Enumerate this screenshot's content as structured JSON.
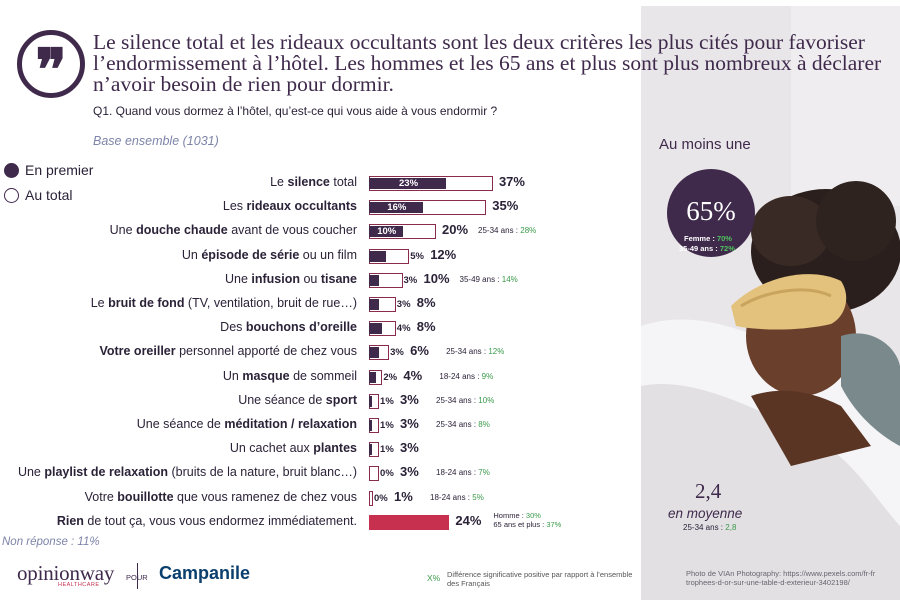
{
  "headline": "Le silence total et les rideaux occultants sont les deux critères les plus cités pour favoriser l’endormissement à l’hôtel. Les hommes et les 65 ans et plus sont plus nombreux à déclarer n’avoir besoin de rien pour dormir.",
  "question": "Q1. Quand vous dormez à l’hôtel, qu’est-ce qui vous aide à vous endormir ?",
  "base": "Base ensemble (1031)",
  "legend": {
    "first": "En premier",
    "total": "Au total"
  },
  "quote_icon": "quote-icon",
  "colors": {
    "primary": "#3f2a4c",
    "highlight": "#c8304f",
    "significant": "#3a9a4a"
  },
  "chart_data": {
    "type": "bar",
    "orientation": "horizontal",
    "series": [
      {
        "name": "En premier",
        "values": [
          23,
          16,
          10,
          5,
          3,
          3,
          4,
          3,
          2,
          1,
          1,
          1,
          0,
          0,
          null
        ]
      },
      {
        "name": "Au total",
        "values": [
          37,
          35,
          20,
          12,
          10,
          8,
          8,
          6,
          4,
          3,
          3,
          3,
          3,
          1,
          24
        ]
      }
    ],
    "categories": [
      {
        "pre": "Le ",
        "bold": "silence",
        "post": " total"
      },
      {
        "pre": "Les ",
        "bold": "rideaux occultants",
        "post": ""
      },
      {
        "pre": "Une ",
        "bold": "douche chaude",
        "post": " avant de vous coucher"
      },
      {
        "pre": "Un ",
        "bold": "épisode de série",
        "post": " ou un film"
      },
      {
        "pre": "Une ",
        "bold": "infusion",
        "post": " ou ",
        "bold2": "tisane"
      },
      {
        "pre": "Le ",
        "bold": "bruit de fond",
        "post": " (TV, ventilation, bruit de rue…)"
      },
      {
        "pre": "Des ",
        "bold": "bouchons d’oreille",
        "post": ""
      },
      {
        "pre": "",
        "bold": "Votre oreiller",
        "post": " personnel apporté de chez vous"
      },
      {
        "pre": "Un ",
        "bold": "masque",
        "post": " de sommeil"
      },
      {
        "pre": "Une séance de ",
        "bold": "sport",
        "post": ""
      },
      {
        "pre": "Une séance de ",
        "bold": "méditation / relaxation",
        "post": ""
      },
      {
        "pre": "Un cachet aux ",
        "bold": "plantes",
        "post": ""
      },
      {
        "pre": "Une ",
        "bold": "playlist de relaxation",
        "post": " (bruits de la nature, bruit blanc…)"
      },
      {
        "pre": "Votre ",
        "bold": "bouillotte",
        "post": " que vous ramenez de chez vous"
      },
      {
        "pre": "",
        "bold": "Rien",
        "post": " de tout ça, vous vous endormez immédiatement."
      }
    ],
    "significance": [
      null,
      null,
      {
        "group": "25-34 ans :",
        "value": "28%"
      },
      null,
      {
        "group": "35-49 ans :",
        "value": "14%"
      },
      null,
      null,
      {
        "group": "25-34 ans :",
        "value": "12%"
      },
      {
        "group": "18-24 ans :",
        "value": "9%"
      },
      {
        "group": "25-34 ans :",
        "value": "10%"
      },
      {
        "group": "25-34 ans :",
        "value": "8%"
      },
      null,
      {
        "group": "18-24 ans :",
        "value": "7%"
      },
      {
        "group": "18-24 ans :",
        "value": "5%"
      },
      null
    ],
    "rien_sig": [
      {
        "group": "Homme :",
        "value": "30%"
      },
      {
        "group": "65 ans et plus :",
        "value": "37%"
      }
    ]
  },
  "non_reponse": "Non réponse : 11%",
  "logos": {
    "opinionway": "opinionway",
    "opinionway_sub": "HEALTHCARE",
    "pour": "POUR",
    "campanile": "Campanile"
  },
  "sig_note": {
    "x": "X%",
    "text": "Différence significative positive par rapport à l’ensemble des Français"
  },
  "side": {
    "au_moins_une": "Au moins une",
    "big_pct": "65%",
    "femme_label": "Femme :",
    "femme_value": "70%",
    "age_label": "35-49 ans :",
    "age_value": "72%",
    "avg": "2,4",
    "avg_label": "en moyenne",
    "avg_sig_group": "25-34 ans :",
    "avg_sig_value": "2,8",
    "credit_line1": "Photo de VIAn Photography: https://www.pexels.com/fr-fr",
    "credit_line2": "trophees-d-or-sur-une-table-d-exterieur-3402198/"
  }
}
